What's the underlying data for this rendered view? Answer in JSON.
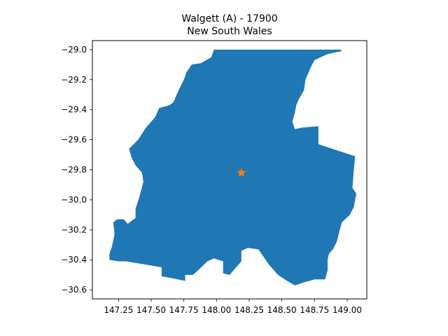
{
  "map": {
    "title_line1": "Walgett (A) - 17900",
    "title_line2": "New South Wales",
    "fill_color": "#1f77b4",
    "marker_color": "#ff7f0e",
    "marker_symbol": "star",
    "x_ticks": [
      "147.25",
      "147.50",
      "147.75",
      "148.00",
      "148.25",
      "148.50",
      "148.75",
      "149.00"
    ],
    "y_ticks": [
      "−29.0",
      "−29.2",
      "−29.4",
      "−29.6",
      "−29.8",
      "−30.0",
      "−30.2",
      "−30.4",
      "−30.6"
    ]
  },
  "chart_data": {
    "type": "map",
    "title": "Walgett (A) - 17900\nNew South Wales",
    "xlim": [
      147.05,
      149.15
    ],
    "ylim": [
      -30.66,
      -28.94
    ],
    "x_tick_values": [
      147.25,
      147.5,
      147.75,
      148.0,
      148.25,
      148.5,
      148.75,
      149.0
    ],
    "y_tick_values": [
      -29.0,
      -29.2,
      -29.4,
      -29.6,
      -29.8,
      -30.0,
      -30.2,
      -30.4,
      -30.6
    ],
    "grid": false,
    "region_name": "Walgett (A) - 17900",
    "state": "New South Wales",
    "centroid": {
      "lon": 148.19,
      "lat": -29.82
    },
    "boundary": [
      [
        147.98,
        -29.0
      ],
      [
        148.95,
        -29.0
      ],
      [
        148.96,
        -29.01
      ],
      [
        148.85,
        -29.03
      ],
      [
        148.75,
        -29.07
      ],
      [
        148.72,
        -29.12
      ],
      [
        148.68,
        -29.2
      ],
      [
        148.67,
        -29.27
      ],
      [
        148.63,
        -29.33
      ],
      [
        148.61,
        -29.37
      ],
      [
        148.6,
        -29.42
      ],
      [
        148.58,
        -29.48
      ],
      [
        148.6,
        -29.53
      ],
      [
        148.65,
        -29.52
      ],
      [
        148.78,
        -29.51
      ],
      [
        148.78,
        -29.63
      ],
      [
        149.06,
        -29.71
      ],
      [
        149.05,
        -29.81
      ],
      [
        149.04,
        -29.92
      ],
      [
        149.07,
        -29.96
      ],
      [
        149.05,
        -30.05
      ],
      [
        149.02,
        -30.1
      ],
      [
        148.96,
        -30.15
      ],
      [
        148.94,
        -30.21
      ],
      [
        148.92,
        -30.28
      ],
      [
        148.89,
        -30.33
      ],
      [
        148.86,
        -30.36
      ],
      [
        148.85,
        -30.4
      ],
      [
        148.85,
        -30.47
      ],
      [
        148.83,
        -30.53
      ],
      [
        148.75,
        -30.53
      ],
      [
        148.67,
        -30.55
      ],
      [
        148.6,
        -30.57
      ],
      [
        148.54,
        -30.54
      ],
      [
        148.47,
        -30.5
      ],
      [
        148.4,
        -30.43
      ],
      [
        148.36,
        -30.38
      ],
      [
        148.32,
        -30.33
      ],
      [
        148.24,
        -30.32
      ],
      [
        148.19,
        -30.34
      ],
      [
        148.19,
        -30.41
      ],
      [
        148.15,
        -30.45
      ],
      [
        148.1,
        -30.5
      ],
      [
        148.05,
        -30.49
      ],
      [
        148.05,
        -30.41
      ],
      [
        147.98,
        -30.39
      ],
      [
        147.93,
        -30.41
      ],
      [
        147.87,
        -30.46
      ],
      [
        147.82,
        -30.5
      ],
      [
        147.76,
        -30.5
      ],
      [
        147.76,
        -30.54
      ],
      [
        147.65,
        -30.52
      ],
      [
        147.58,
        -30.51
      ],
      [
        147.58,
        -30.45
      ],
      [
        147.45,
        -30.43
      ],
      [
        147.31,
        -30.41
      ],
      [
        147.25,
        -30.41
      ],
      [
        147.18,
        -30.4
      ],
      [
        147.18,
        -30.36
      ],
      [
        147.2,
        -30.31
      ],
      [
        147.22,
        -30.23
      ],
      [
        147.21,
        -30.15
      ],
      [
        147.24,
        -30.13
      ],
      [
        147.29,
        -30.13
      ],
      [
        147.32,
        -30.16
      ],
      [
        147.38,
        -30.12
      ],
      [
        147.38,
        -30.06
      ],
      [
        147.41,
        -29.98
      ],
      [
        147.44,
        -29.88
      ],
      [
        147.43,
        -29.82
      ],
      [
        147.38,
        -29.77
      ],
      [
        147.35,
        -29.72
      ],
      [
        147.33,
        -29.66
      ],
      [
        147.4,
        -29.6
      ],
      [
        147.46,
        -29.52
      ],
      [
        147.53,
        -29.45
      ],
      [
        147.56,
        -29.39
      ],
      [
        147.64,
        -29.37
      ],
      [
        147.67,
        -29.35
      ],
      [
        147.71,
        -29.27
      ],
      [
        147.75,
        -29.2
      ],
      [
        147.77,
        -29.15
      ],
      [
        147.81,
        -29.1
      ],
      [
        147.88,
        -29.09
      ],
      [
        147.96,
        -29.05
      ]
    ]
  }
}
